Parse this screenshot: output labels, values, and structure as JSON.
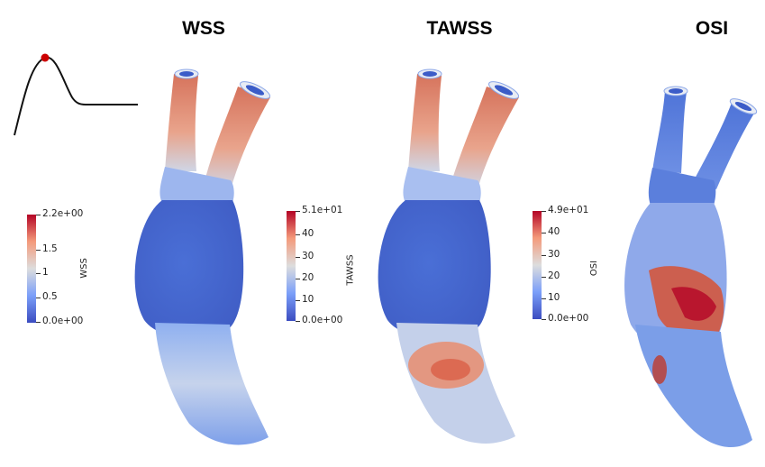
{
  "panels": [
    {
      "title": "WSS",
      "colorbar": {
        "label": "WSS",
        "ticks": [
          "2.2e+00",
          "1.5",
          "1",
          "0.5",
          "0.0e+00"
        ]
      }
    },
    {
      "title": "TAWSS",
      "colorbar": {
        "label": "TAWSS",
        "ticks": [
          "5.1e+01",
          "40",
          "30",
          "20",
          "10",
          "0.0e+00"
        ]
      }
    },
    {
      "title": "OSI",
      "colorbar": {
        "label": "OSI",
        "ticks": [
          "4.9e+01",
          "40",
          "30",
          "20",
          "10",
          "0.0e+00"
        ]
      }
    }
  ],
  "colors": {
    "low": "#3b4cc0",
    "mid": "#dddddd",
    "high": "#b40426",
    "marker": "#cc0000"
  }
}
